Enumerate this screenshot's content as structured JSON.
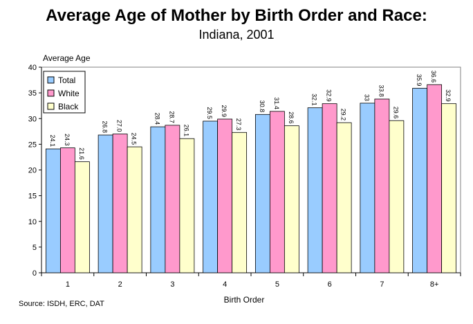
{
  "chart_data": {
    "type": "bar",
    "title": "Average Age of Mother by Birth Order and Race:",
    "subtitle": "Indiana, 2001",
    "y_label": "Average Age",
    "x_label": "Birth Order",
    "source": "Source: ISDH, ERC, DAT",
    "categories": [
      "1",
      "2",
      "3",
      "4",
      "5",
      "6",
      "7",
      "8+"
    ],
    "series": [
      {
        "name": "Total",
        "color": "#99ccff",
        "values": [
          24.1,
          26.8,
          28.4,
          29.5,
          30.8,
          32.1,
          33,
          35.9
        ],
        "value_labels": [
          "24.1",
          "26.8",
          "28.4",
          "29.5",
          "30.8",
          "32.1",
          "33",
          "35.9"
        ]
      },
      {
        "name": "White",
        "color": "#ff99cc",
        "values": [
          24.3,
          27.0,
          28.7,
          29.9,
          31.4,
          32.9,
          33.8,
          36.6
        ],
        "value_labels": [
          "24.3",
          "27.0",
          "28.7",
          "29.9",
          "31.4",
          "32.9",
          "33.8",
          "36.6"
        ]
      },
      {
        "name": "Black",
        "color": "#ffffcc",
        "values": [
          21.6,
          24.5,
          26.1,
          27.3,
          28.6,
          29.2,
          29.6,
          32.9
        ],
        "value_labels": [
          "21.6",
          "24.5",
          "26.1",
          "27.3",
          "28.6",
          "29.2",
          "29.6",
          "32.9"
        ]
      }
    ],
    "ylim": [
      0,
      40
    ],
    "yticks": [
      0,
      5,
      10,
      15,
      20,
      25,
      30,
      35,
      40
    ],
    "grid": false,
    "legend": "top-left"
  }
}
